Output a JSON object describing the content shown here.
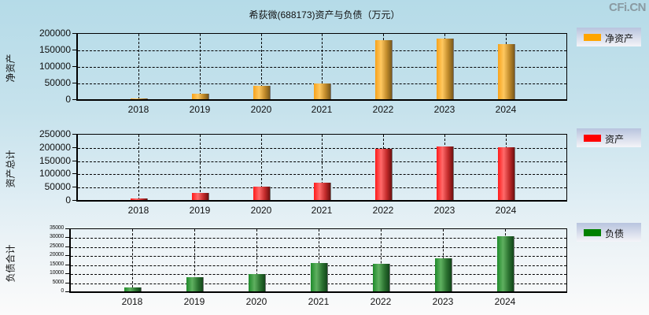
{
  "title": "希荻微(688173)资产与负债（万元）",
  "brand": "CFi.CN",
  "chart_data": [
    {
      "type": "bar",
      "title": "希荻微(688173)资产与负债（万元）",
      "ylabel": "净资产",
      "xlabel": "",
      "categories": [
        "2018",
        "2019",
        "2020",
        "2021",
        "2022",
        "2023",
        "2024"
      ],
      "series": [
        {
          "name": "净资产",
          "color": "#FFA500",
          "values": [
            2400,
            16700,
            40500,
            47600,
            179000,
            183000,
            166700
          ]
        }
      ],
      "ylim": [
        0,
        200000
      ],
      "yticks": [
        "200000",
        "150000",
        "100000",
        "50000",
        "0"
      ],
      "grid": true,
      "legend_position": "right"
    },
    {
      "type": "bar",
      "ylabel": "资产总计",
      "xlabel": "",
      "categories": [
        "2018",
        "2019",
        "2020",
        "2021",
        "2022",
        "2023",
        "2024"
      ],
      "series": [
        {
          "name": "资产",
          "color": "#FF0000",
          "values": [
            6000,
            26800,
            51500,
            65500,
            194000,
            202000,
            199500
          ]
        }
      ],
      "ylim": [
        0,
        250000
      ],
      "yticks": [
        "250000",
        "200000",
        "150000",
        "100000",
        "50000",
        "0"
      ],
      "grid": true,
      "legend_position": "right"
    },
    {
      "type": "bar",
      "ylabel": "负债合计",
      "xlabel": "",
      "categories": [
        "2018",
        "2019",
        "2020",
        "2021",
        "2022",
        "2023",
        "2024"
      ],
      "series": [
        {
          "name": "负债",
          "color": "#008000",
          "values": [
            2200,
            7900,
            9750,
            15750,
            15300,
            18500,
            30750
          ]
        }
      ],
      "ylim": [
        0,
        35000
      ],
      "yticks": [
        "35000",
        "30000",
        "25000",
        "20000",
        "15000",
        "10000",
        "5000",
        "0"
      ],
      "grid": true,
      "legend_position": "right"
    }
  ]
}
